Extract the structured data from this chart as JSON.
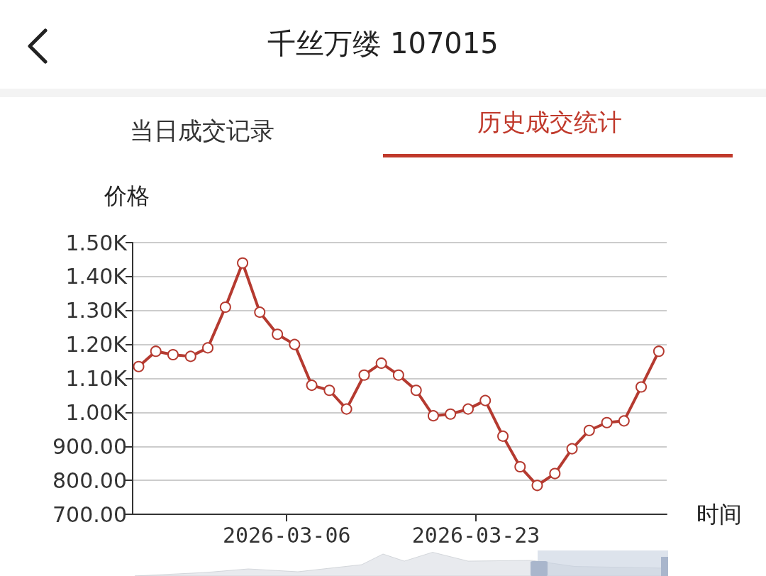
{
  "chart_data": {
    "type": "line",
    "title": "千丝万缕 107015",
    "annotations": [
      "当日成交记录",
      "历史成交统计"
    ],
    "xlabel": "时间",
    "ylabel": "价格",
    "x": [
      "2026-02-20T17:00",
      "2026-02-22T06:00",
      "2026-02-23T19:00",
      "2026-02-25T09:00",
      "2026-02-26T22:00",
      "2026-02-28T12:00",
      "2026-03-02T01:00",
      "2026-03-03T14:00",
      "2026-03-05T04:00",
      "2026-03-06T17:00",
      "2026-03-08T06:00",
      "2026-03-09T20:00",
      "2026-03-11T09:00",
      "2026-03-12T23:00",
      "2026-03-14T12:00",
      "2026-03-16T01:00",
      "2026-03-17T15:00",
      "2026-03-19T04:00",
      "2026-03-20T17:00",
      "2026-03-22T07:00",
      "2026-03-23T20:00",
      "2026-03-25T10:00",
      "2026-03-26T23:00",
      "2026-03-28T12:00",
      "2026-03-30T02:00",
      "2026-03-31T15:00",
      "2026-04-02T04:00",
      "2026-04-03T18:00",
      "2026-04-05T07:00",
      "2026-04-06T20:00",
      "2026-04-08T10:00"
    ],
    "series": [
      {
        "color": "#b53a30",
        "values": [
          1135,
          1180,
          1170,
          1165,
          1190,
          1310,
          1440,
          1295,
          1230,
          1200,
          1080,
          1065,
          1010,
          1110,
          1145,
          1110,
          1065,
          990,
          995,
          1010,
          1035,
          930,
          840,
          785,
          820,
          893,
          947,
          970,
          975,
          1075,
          1180
        ]
      }
    ],
    "xlim": [
      "2026-02-20T04:00",
      "2026-04-09T03:00"
    ],
    "xticks": [
      {
        "value": "2026-03-06",
        "label": "2026-03-06"
      },
      {
        "value": "2026-03-23",
        "label": "2026-03-23"
      }
    ],
    "ylim": [
      700,
      1500
    ],
    "yticks": [
      {
        "value": 700,
        "label": "700.00"
      },
      {
        "value": 800,
        "label": "800.00"
      },
      {
        "value": 900,
        "label": "900.00"
      },
      {
        "value": 1000,
        "label": "1.00K"
      },
      {
        "value": 1100,
        "label": "1.10K"
      },
      {
        "value": 1200,
        "label": "1.20K"
      },
      {
        "value": 1300,
        "label": "1.30K"
      },
      {
        "value": 1400,
        "label": "1.40K"
      },
      {
        "value": 1500,
        "label": "1.50K"
      }
    ],
    "grid": "y",
    "marker": "circle",
    "line_style": "solid"
  }
}
